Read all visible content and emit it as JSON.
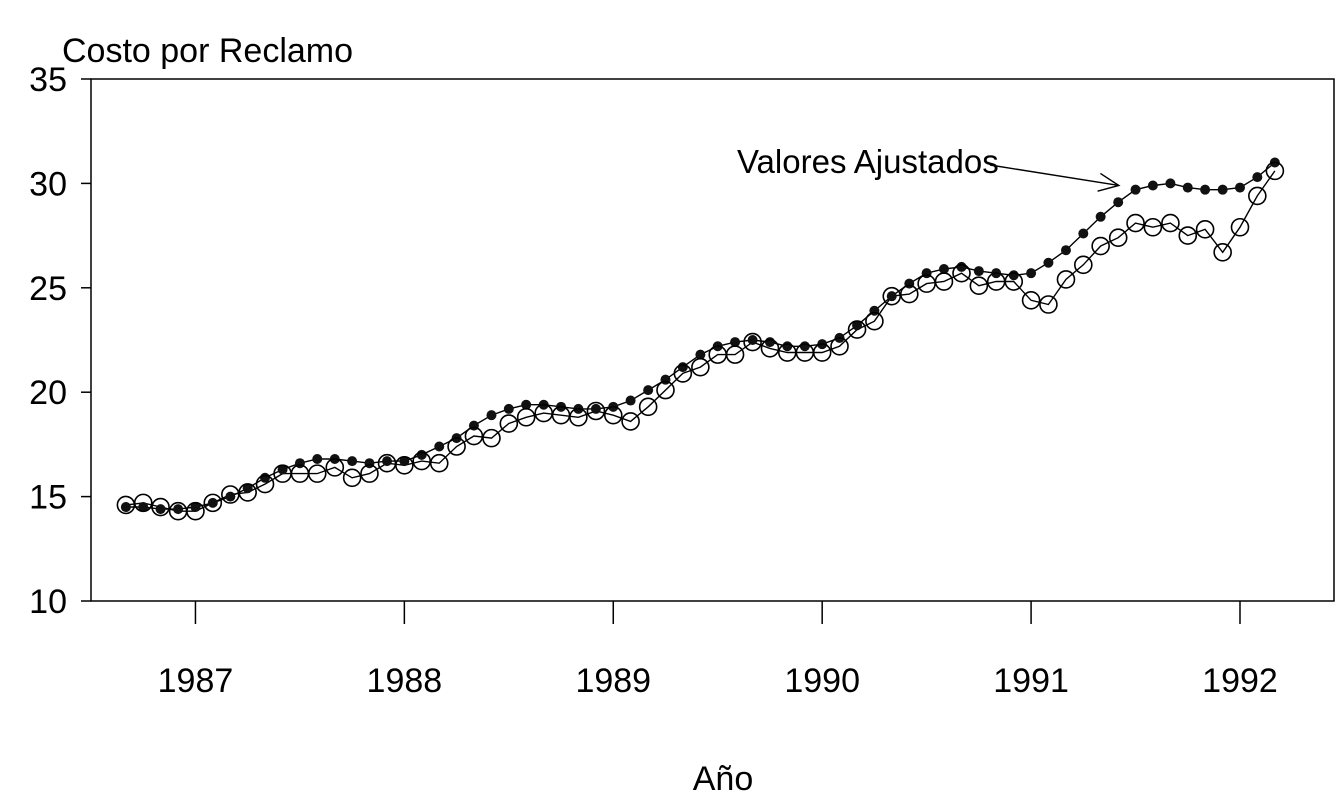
{
  "chart_data": {
    "type": "line",
    "title": "",
    "ylabel": "Costo por Reclamo",
    "xlabel": "Año",
    "xlim": [
      1986.5,
      1992.45
    ],
    "ylim": [
      10,
      35
    ],
    "x_ticks": [
      1987,
      1988,
      1989,
      1990,
      1991,
      1992
    ],
    "x_tick_labels": [
      "1987",
      "1988",
      "1989",
      "1990",
      "1991",
      "1992"
    ],
    "y_ticks": [
      10,
      15,
      20,
      25,
      30,
      35
    ],
    "y_tick_labels": [
      "10",
      "15",
      "20",
      "25",
      "30",
      "35"
    ],
    "grid": false,
    "legend": "none",
    "x": [
      1986.667,
      1986.75,
      1986.833,
      1986.917,
      1987.0,
      1987.083,
      1987.167,
      1987.25,
      1987.333,
      1987.417,
      1987.5,
      1987.583,
      1987.667,
      1987.75,
      1987.833,
      1987.917,
      1988.0,
      1988.083,
      1988.167,
      1988.25,
      1988.333,
      1988.417,
      1988.5,
      1988.583,
      1988.667,
      1988.75,
      1988.833,
      1988.917,
      1989.0,
      1989.083,
      1989.167,
      1989.25,
      1989.333,
      1989.417,
      1989.5,
      1989.583,
      1989.667,
      1989.75,
      1989.833,
      1989.917,
      1990.0,
      1990.083,
      1990.167,
      1990.25,
      1990.333,
      1990.417,
      1990.5,
      1990.583,
      1990.667,
      1990.75,
      1990.833,
      1990.917,
      1991.0,
      1991.083,
      1991.167,
      1991.25,
      1991.333,
      1991.417,
      1991.5,
      1991.583,
      1991.667,
      1991.75,
      1991.833,
      1991.917,
      1992.0,
      1992.083,
      1992.167
    ],
    "series": [
      {
        "marker": "filled-circle",
        "values": [
          14.5,
          14.5,
          14.4,
          14.4,
          14.5,
          14.7,
          15.0,
          15.4,
          15.9,
          16.3,
          16.6,
          16.8,
          16.8,
          16.7,
          16.6,
          16.7,
          16.7,
          17.0,
          17.4,
          17.8,
          18.4,
          18.9,
          19.2,
          19.4,
          19.4,
          19.3,
          19.2,
          19.2,
          19.3,
          19.6,
          20.1,
          20.6,
          21.2,
          21.8,
          22.2,
          22.4,
          22.5,
          22.4,
          22.2,
          22.2,
          22.3,
          22.6,
          23.2,
          23.9,
          24.6,
          25.2,
          25.7,
          25.9,
          26.0,
          25.8,
          25.7,
          25.6,
          25.7,
          26.2,
          26.8,
          27.6,
          28.4,
          29.1,
          29.7,
          29.9,
          30.0,
          29.8,
          29.7,
          29.7,
          29.8,
          30.3,
          31.0
        ]
      },
      {
        "marker": "open-circle",
        "values": [
          14.6,
          14.7,
          14.5,
          14.3,
          14.3,
          14.7,
          15.1,
          15.2,
          15.6,
          16.1,
          16.1,
          16.1,
          16.4,
          15.9,
          16.1,
          16.6,
          16.5,
          16.7,
          16.6,
          17.4,
          17.9,
          17.8,
          18.5,
          18.8,
          19.0,
          18.9,
          18.8,
          19.1,
          18.9,
          18.6,
          19.3,
          20.1,
          20.9,
          21.2,
          21.8,
          21.8,
          22.4,
          22.1,
          21.9,
          21.9,
          21.9,
          22.2,
          23.0,
          23.4,
          24.6,
          24.7,
          25.2,
          25.3,
          25.7,
          25.1,
          25.3,
          25.3,
          24.4,
          24.2,
          25.4,
          26.1,
          27.0,
          27.4,
          28.1,
          27.9,
          28.1,
          27.5,
          27.8,
          26.7,
          27.9,
          29.4,
          30.6
        ]
      }
    ],
    "annotations": [
      {
        "text": "Valores Ajustados",
        "arrow_to": [
          1991.42,
          29.9
        ]
      }
    ]
  }
}
